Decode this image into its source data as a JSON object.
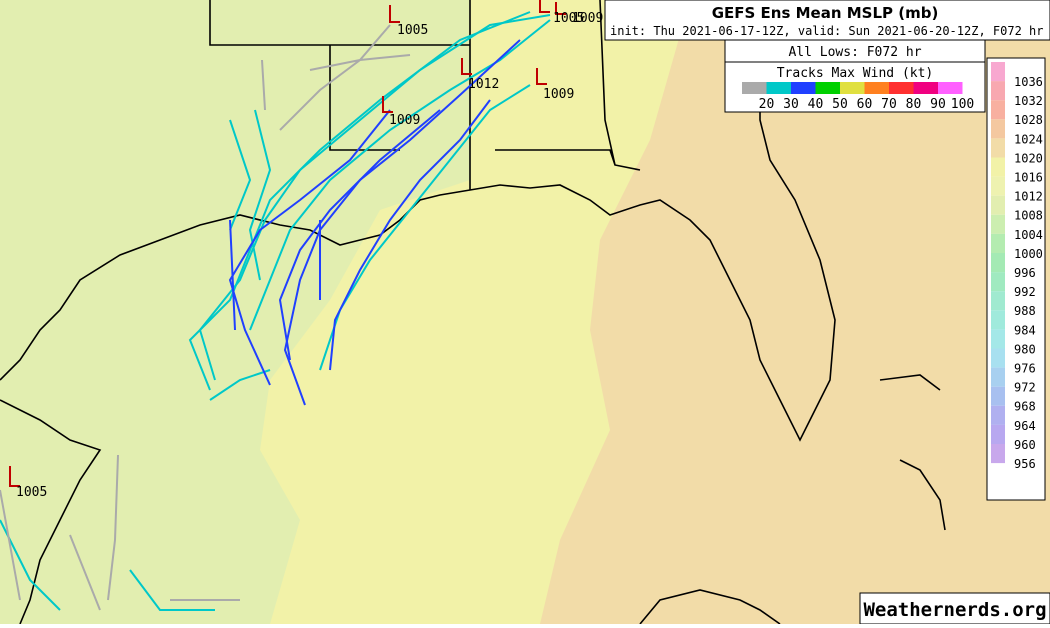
{
  "header": {
    "title": "GEFS Ens Mean MSLP (mb)",
    "subtitle": "init: Thu 2021-06-17-12Z, valid: Sun 2021-06-20-12Z, F072 hr"
  },
  "tracks_legend": {
    "title": "All Lows: F072 hr",
    "subtitle": "Tracks Max Wind (kt)",
    "levels": [
      {
        "label": 20,
        "color": "#aaaaaa"
      },
      {
        "label": 30,
        "color": "#00c8c8"
      },
      {
        "label": 40,
        "color": "#2040ff"
      },
      {
        "label": 50,
        "color": "#00d000"
      },
      {
        "label": 60,
        "color": "#e0e040"
      },
      {
        "label": 70,
        "color": "#ff8020"
      },
      {
        "label": 80,
        "color": "#ff3030"
      },
      {
        "label": 90,
        "color": "#f00080"
      },
      {
        "label": 100,
        "color": "#ff60ff"
      }
    ]
  },
  "pressure_legend": {
    "levels": [
      {
        "label": 1036,
        "color": "#f8a8d0"
      },
      {
        "label": 1032,
        "color": "#f8a8b0"
      },
      {
        "label": 1028,
        "color": "#f8b0a0"
      },
      {
        "label": 1024,
        "color": "#f4c8a0"
      },
      {
        "label": 1020,
        "color": "#f2dca8"
      },
      {
        "label": 1016,
        "color": "#f2f2a8"
      },
      {
        "label": 1012,
        "color": "#eef2b0"
      },
      {
        "label": 1008,
        "color": "#e2eeb0"
      },
      {
        "label": 1004,
        "color": "#cceeb0"
      },
      {
        "label": 1000,
        "color": "#b4ecb0"
      },
      {
        "label": 996,
        "color": "#a4eab4"
      },
      {
        "label": 992,
        "color": "#a0eac0"
      },
      {
        "label": 988,
        "color": "#a0ead0"
      },
      {
        "label": 984,
        "color": "#a0eadc"
      },
      {
        "label": 980,
        "color": "#a4e8e8"
      },
      {
        "label": 976,
        "color": "#a8e0f0"
      },
      {
        "label": 972,
        "color": "#a8d0f0"
      },
      {
        "label": 968,
        "color": "#a8c0f0"
      },
      {
        "label": 964,
        "color": "#b0b0f0"
      },
      {
        "label": 960,
        "color": "#b8a8f0"
      },
      {
        "label": 956,
        "color": "#c8a8ec"
      }
    ]
  },
  "lows": [
    {
      "label": "1005"
    },
    {
      "label": "1005"
    },
    {
      "label": "1009"
    },
    {
      "label": "1012"
    },
    {
      "label": "1009"
    },
    {
      "label": "1009"
    },
    {
      "label": "1005"
    }
  ],
  "watermark": "Weathernerds.org"
}
